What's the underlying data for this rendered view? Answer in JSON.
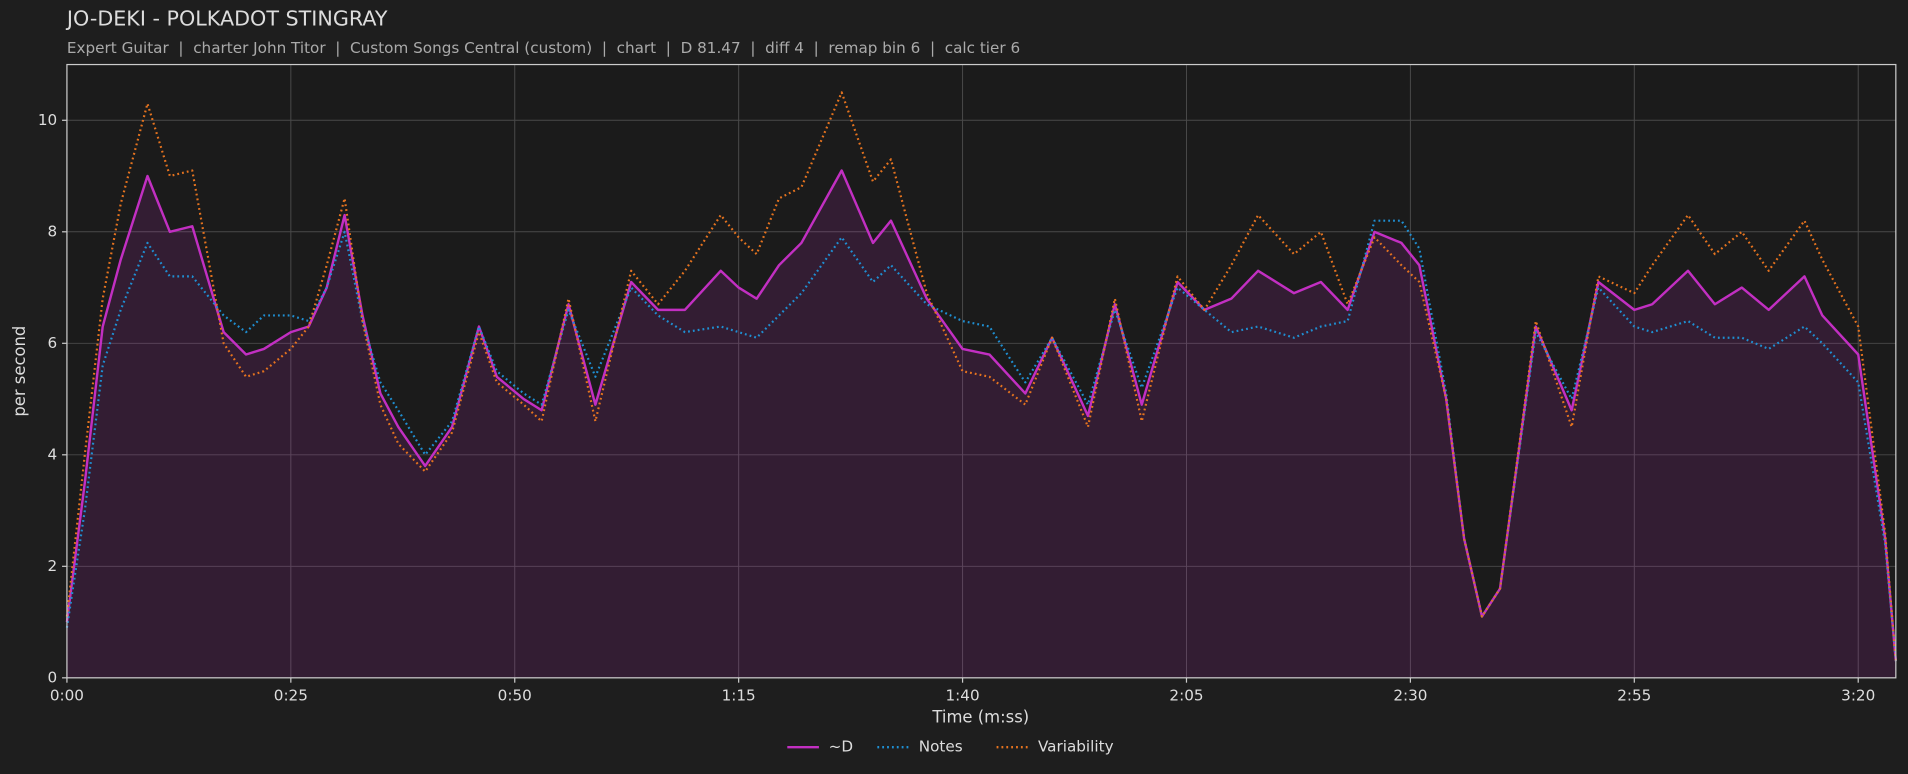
{
  "chart_data": {
    "type": "line",
    "title": "JO-DEKI - POLKADOT STINGRAY",
    "subtitle": "Expert Guitar  |  charter John Titor  |  Custom Songs Central (custom)  |  chart  |  D 81.47  |  diff 4  |  remap bin 6  |  calc tier 6",
    "xlabel": "Time (m:ss)",
    "ylabel": "per second",
    "xlim": [
      0,
      204.2
    ],
    "ylim": [
      0,
      11.0
    ],
    "xticks": [
      {
        "value": 0,
        "label": "0:00"
      },
      {
        "value": 25,
        "label": "0:25"
      },
      {
        "value": 50,
        "label": "0:50"
      },
      {
        "value": 75,
        "label": "1:15"
      },
      {
        "value": 100,
        "label": "1:40"
      },
      {
        "value": 125,
        "label": "2:05"
      },
      {
        "value": 150,
        "label": "2:30"
      },
      {
        "value": 175,
        "label": "2:55"
      },
      {
        "value": 200,
        "label": "3:20"
      }
    ],
    "yticks": [
      0,
      2,
      4,
      6,
      8,
      10
    ],
    "grid": true,
    "legend": "bottom",
    "x": [
      0,
      2,
      4,
      6,
      9,
      11.5,
      14,
      17.5,
      20,
      22,
      25,
      27,
      29,
      31,
      33,
      35,
      37,
      40,
      43,
      46,
      48,
      51,
      53,
      56,
      59,
      63,
      66,
      69,
      73,
      75,
      77,
      79.5,
      82,
      86.5,
      90,
      92,
      96,
      100,
      103,
      107,
      110,
      114,
      117,
      120,
      124,
      127,
      130,
      133,
      137,
      140,
      143,
      146,
      149,
      151,
      154,
      156,
      158,
      160,
      164,
      168,
      171,
      175,
      177,
      181,
      184,
      187,
      190,
      194,
      196,
      200,
      203,
      204.2
    ],
    "series": [
      {
        "name": "~D",
        "color": "#c22fc2",
        "style": "solid",
        "fill": true,
        "values": [
          1.0,
          3.5,
          6.3,
          7.5,
          9.0,
          8.0,
          8.1,
          6.2,
          5.8,
          5.9,
          6.2,
          6.3,
          7.0,
          8.3,
          6.5,
          5.1,
          4.5,
          3.8,
          4.5,
          6.3,
          5.4,
          5.0,
          4.8,
          6.7,
          4.9,
          7.1,
          6.6,
          6.6,
          7.3,
          7.0,
          6.8,
          7.4,
          7.8,
          9.1,
          7.8,
          8.2,
          6.8,
          5.9,
          5.8,
          5.1,
          6.1,
          4.7,
          6.7,
          4.9,
          7.1,
          6.6,
          6.8,
          7.3,
          6.9,
          7.1,
          6.6,
          8.0,
          7.8,
          7.4,
          5.0,
          2.5,
          1.1,
          1.6,
          6.3,
          4.8,
          7.1,
          6.6,
          6.7,
          7.3,
          6.7,
          7.0,
          6.6,
          7.2,
          6.5,
          5.8,
          2.5,
          0.3
        ]
      },
      {
        "name": "Notes",
        "color": "#1f8fd2",
        "style": "dotted",
        "values": [
          0.9,
          3.0,
          5.6,
          6.6,
          7.8,
          7.2,
          7.2,
          6.5,
          6.2,
          6.5,
          6.5,
          6.4,
          7.0,
          8.0,
          6.4,
          5.3,
          4.8,
          4.0,
          4.6,
          6.3,
          5.5,
          5.1,
          4.9,
          6.6,
          5.4,
          7.0,
          6.5,
          6.2,
          6.3,
          6.2,
          6.1,
          6.5,
          6.9,
          7.9,
          7.1,
          7.4,
          6.7,
          6.4,
          6.3,
          5.3,
          6.1,
          4.9,
          6.6,
          5.2,
          7.0,
          6.6,
          6.2,
          6.3,
          6.1,
          6.3,
          6.4,
          8.2,
          8.2,
          7.7,
          5.1,
          2.5,
          1.1,
          1.6,
          6.2,
          5.0,
          7.0,
          6.3,
          6.2,
          6.4,
          6.1,
          6.1,
          5.9,
          6.3,
          6.0,
          5.3,
          2.4,
          0.3
        ]
      },
      {
        "name": "Variability",
        "color": "#e5731f",
        "style": "dotted",
        "values": [
          1.1,
          4.0,
          6.8,
          8.5,
          10.3,
          9.0,
          9.1,
          6.0,
          5.4,
          5.5,
          5.9,
          6.3,
          7.4,
          8.6,
          6.4,
          4.9,
          4.2,
          3.7,
          4.4,
          6.2,
          5.3,
          4.9,
          4.6,
          6.8,
          4.6,
          7.3,
          6.7,
          7.3,
          8.3,
          7.9,
          7.6,
          8.6,
          8.8,
          10.5,
          8.9,
          9.3,
          6.9,
          5.5,
          5.4,
          4.9,
          6.1,
          4.5,
          6.8,
          4.6,
          7.2,
          6.6,
          7.4,
          8.3,
          7.6,
          8.0,
          6.7,
          7.9,
          7.4,
          7.1,
          5.0,
          2.5,
          1.1,
          1.6,
          6.4,
          4.5,
          7.2,
          6.9,
          7.4,
          8.3,
          7.6,
          8.0,
          7.3,
          8.2,
          7.5,
          6.3,
          2.6,
          0.3
        ]
      }
    ]
  }
}
